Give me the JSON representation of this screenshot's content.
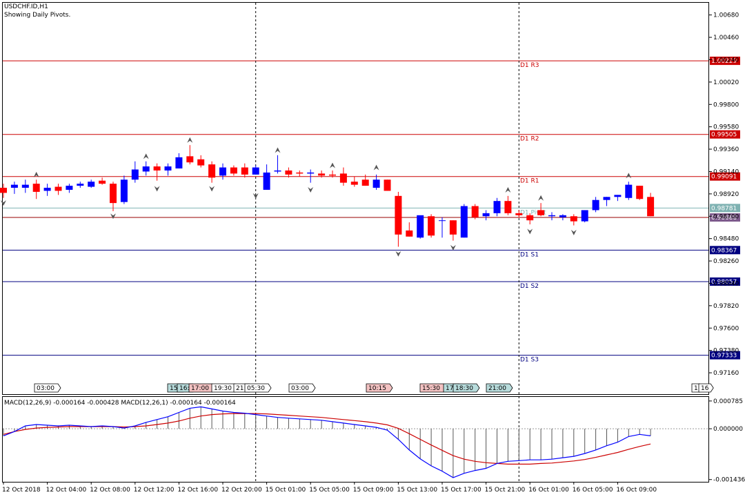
{
  "header": {
    "symbol": "USDCHF.ID,H1",
    "subtitle": "Showing Daily Pivots."
  },
  "colors": {
    "bull": "#0000ff",
    "bear": "#ff0000",
    "resistance": "#cc0000",
    "support": "#000080",
    "pivot": "#7fb2b2",
    "macd_main": "#0000ff",
    "macd_signal": "#cc0000",
    "axis": "#000000"
  },
  "chart_data": [
    {
      "type": "candlestick",
      "title": "USDCHF.ID,H1",
      "subtitle": "Showing Daily Pivots.",
      "ylim": [
        0.9695,
        1.008
      ],
      "y_ticks": [
        "1.00680",
        "1.00460",
        "1.00240",
        "1.00020",
        "0.99800",
        "0.99580",
        "0.99360",
        "0.99140",
        "0.98920",
        "0.98700",
        "0.98480",
        "0.98260",
        "0.98040",
        "0.97820",
        "0.97600",
        "0.97380",
        "0.97160"
      ],
      "pivot_levels": [
        {
          "name": "D1 R3",
          "value": 1.00229,
          "label": "1.00229",
          "kind": "resistance"
        },
        {
          "name": "D1 R2",
          "value": 0.99505,
          "label": "0.99505",
          "kind": "resistance"
        },
        {
          "name": "D1 R1",
          "value": 0.99091,
          "label": "0.99091",
          "kind": "resistance"
        },
        {
          "name": "D1 Pivot",
          "value": 0.98781,
          "label": "0.98781",
          "kind": "pivot"
        },
        {
          "name": "D1 S1",
          "value": 0.98367,
          "label": "0.98367",
          "kind": "support"
        },
        {
          "name": "D1 S2",
          "value": 0.98057,
          "label": "0.98057",
          "kind": "support"
        },
        {
          "name": "D1 S3",
          "value": 0.97333,
          "label": "0.97333",
          "kind": "support"
        }
      ],
      "current_price": {
        "value": 0.98688,
        "label": "0.98688"
      },
      "candles": [
        {
          "o": 0.9898,
          "h": 0.9902,
          "l": 0.9888,
          "c": 0.9893
        },
        {
          "o": 0.9898,
          "h": 0.9904,
          "l": 0.9892,
          "c": 0.9901
        },
        {
          "o": 0.9898,
          "h": 0.9906,
          "l": 0.9893,
          "c": 0.9901
        },
        {
          "o": 0.9902,
          "h": 0.9906,
          "l": 0.9887,
          "c": 0.9894
        },
        {
          "o": 0.9895,
          "h": 0.9902,
          "l": 0.989,
          "c": 0.9898
        },
        {
          "o": 0.9899,
          "h": 0.9902,
          "l": 0.9891,
          "c": 0.9895
        },
        {
          "o": 0.9896,
          "h": 0.9902,
          "l": 0.9893,
          "c": 0.99
        },
        {
          "o": 0.99,
          "h": 0.9904,
          "l": 0.9898,
          "c": 0.9902
        },
        {
          "o": 0.9899,
          "h": 0.9906,
          "l": 0.9898,
          "c": 0.9904
        },
        {
          "o": 0.9905,
          "h": 0.9908,
          "l": 0.9901,
          "c": 0.9902
        },
        {
          "o": 0.9902,
          "h": 0.9904,
          "l": 0.9875,
          "c": 0.9883
        },
        {
          "o": 0.9884,
          "h": 0.991,
          "l": 0.9882,
          "c": 0.9906
        },
        {
          "o": 0.9906,
          "h": 0.9924,
          "l": 0.9903,
          "c": 0.9916
        },
        {
          "o": 0.9914,
          "h": 0.9924,
          "l": 0.991,
          "c": 0.9919
        },
        {
          "o": 0.9919,
          "h": 0.9922,
          "l": 0.9905,
          "c": 0.9915
        },
        {
          "o": 0.9915,
          "h": 0.9922,
          "l": 0.991,
          "c": 0.9919
        },
        {
          "o": 0.9917,
          "h": 0.9932,
          "l": 0.9917,
          "c": 0.9928
        },
        {
          "o": 0.9929,
          "h": 0.994,
          "l": 0.9921,
          "c": 0.9923
        },
        {
          "o": 0.9926,
          "h": 0.993,
          "l": 0.9918,
          "c": 0.992
        },
        {
          "o": 0.9921,
          "h": 0.9924,
          "l": 0.9903,
          "c": 0.9908
        },
        {
          "o": 0.991,
          "h": 0.9922,
          "l": 0.9906,
          "c": 0.9918
        },
        {
          "o": 0.9918,
          "h": 0.992,
          "l": 0.991,
          "c": 0.9912
        },
        {
          "o": 0.9918,
          "h": 0.9922,
          "l": 0.9908,
          "c": 0.9911
        },
        {
          "o": 0.9911,
          "h": 0.992,
          "l": 0.9911,
          "c": 0.9918
        },
        {
          "o": 0.9896,
          "h": 0.9921,
          "l": 0.9896,
          "c": 0.9913
        },
        {
          "o": 0.9914,
          "h": 0.993,
          "l": 0.9912,
          "c": 0.9915
        },
        {
          "o": 0.9915,
          "h": 0.9918,
          "l": 0.9908,
          "c": 0.9911
        },
        {
          "o": 0.9913,
          "h": 0.9915,
          "l": 0.9909,
          "c": 0.9912
        },
        {
          "o": 0.9912,
          "h": 0.9916,
          "l": 0.9903,
          "c": 0.9913
        },
        {
          "o": 0.9912,
          "h": 0.9915,
          "l": 0.9908,
          "c": 0.991
        },
        {
          "o": 0.9911,
          "h": 0.9915,
          "l": 0.9908,
          "c": 0.991
        },
        {
          "o": 0.9912,
          "h": 0.9918,
          "l": 0.99,
          "c": 0.9903
        },
        {
          "o": 0.9904,
          "h": 0.9909,
          "l": 0.9899,
          "c": 0.9901
        },
        {
          "o": 0.9906,
          "h": 0.9911,
          "l": 0.99,
          "c": 0.99
        },
        {
          "o": 0.9898,
          "h": 0.9911,
          "l": 0.9896,
          "c": 0.9906
        },
        {
          "o": 0.9906,
          "h": 0.9906,
          "l": 0.9895,
          "c": 0.9895
        },
        {
          "o": 0.989,
          "h": 0.9894,
          "l": 0.984,
          "c": 0.9852
        },
        {
          "o": 0.9856,
          "h": 0.9864,
          "l": 0.985,
          "c": 0.985
        },
        {
          "o": 0.9849,
          "h": 0.9869,
          "l": 0.9848,
          "c": 0.9871
        },
        {
          "o": 0.987,
          "h": 0.9872,
          "l": 0.9849,
          "c": 0.9851
        },
        {
          "o": 0.9866,
          "h": 0.9869,
          "l": 0.9849,
          "c": 0.9866
        },
        {
          "o": 0.9866,
          "h": 0.9866,
          "l": 0.9846,
          "c": 0.9852
        },
        {
          "o": 0.9849,
          "h": 0.9882,
          "l": 0.9849,
          "c": 0.988
        },
        {
          "o": 0.988,
          "h": 0.9882,
          "l": 0.9867,
          "c": 0.9869
        },
        {
          "o": 0.987,
          "h": 0.9876,
          "l": 0.9866,
          "c": 0.9873
        },
        {
          "o": 0.9873,
          "h": 0.9888,
          "l": 0.987,
          "c": 0.9885
        },
        {
          "o": 0.9885,
          "h": 0.989,
          "l": 0.9871,
          "c": 0.9873
        },
        {
          "o": 0.9873,
          "h": 0.9876,
          "l": 0.9869,
          "c": 0.9871
        },
        {
          "o": 0.9871,
          "h": 0.9873,
          "l": 0.9862,
          "c": 0.9866
        },
        {
          "o": 0.9876,
          "h": 0.9883,
          "l": 0.987,
          "c": 0.9871
        },
        {
          "o": 0.987,
          "h": 0.9874,
          "l": 0.9866,
          "c": 0.9871
        },
        {
          "o": 0.9869,
          "h": 0.9872,
          "l": 0.9866,
          "c": 0.9871
        },
        {
          "o": 0.987,
          "h": 0.9872,
          "l": 0.9861,
          "c": 0.9865
        },
        {
          "o": 0.9865,
          "h": 0.9876,
          "l": 0.9864,
          "c": 0.9876
        },
        {
          "o": 0.9876,
          "h": 0.9889,
          "l": 0.9874,
          "c": 0.9886
        },
        {
          "o": 0.9886,
          "h": 0.9889,
          "l": 0.988,
          "c": 0.9889
        },
        {
          "o": 0.9889,
          "h": 0.9891,
          "l": 0.9885,
          "c": 0.9891
        },
        {
          "o": 0.9888,
          "h": 0.9904,
          "l": 0.9886,
          "c": 0.9901
        },
        {
          "o": 0.99,
          "h": 0.99,
          "l": 0.9886,
          "c": 0.9887
        },
        {
          "o": 0.9889,
          "h": 0.9893,
          "l": 0.987,
          "c": 0.987
        }
      ],
      "fractals": [
        {
          "i": 0,
          "dir": "down",
          "value": 0.9883
        },
        {
          "i": 3,
          "dir": "up",
          "value": 0.9911
        },
        {
          "i": 10,
          "dir": "down",
          "value": 0.987
        },
        {
          "i": 13,
          "dir": "up",
          "value": 0.9929
        },
        {
          "i": 14,
          "dir": "down",
          "value": 0.9897
        },
        {
          "i": 17,
          "dir": "up",
          "value": 0.9945
        },
        {
          "i": 19,
          "dir": "down",
          "value": 0.9897
        },
        {
          "i": 23,
          "dir": "down",
          "value": 0.989
        },
        {
          "i": 25,
          "dir": "up",
          "value": 0.9935
        },
        {
          "i": 28,
          "dir": "down",
          "value": 0.9896
        },
        {
          "i": 30,
          "dir": "up",
          "value": 0.992
        },
        {
          "i": 34,
          "dir": "up",
          "value": 0.9918
        },
        {
          "i": 36,
          "dir": "down",
          "value": 0.9833
        },
        {
          "i": 41,
          "dir": "down",
          "value": 0.9839
        },
        {
          "i": 46,
          "dir": "up",
          "value": 0.9896
        },
        {
          "i": 48,
          "dir": "down",
          "value": 0.9855
        },
        {
          "i": 49,
          "dir": "up",
          "value": 0.9888
        },
        {
          "i": 52,
          "dir": "down",
          "value": 0.9854
        },
        {
          "i": 57,
          "dir": "up",
          "value": 0.991
        }
      ],
      "event_markers": [
        {
          "label": "03:00",
          "type": "neutral"
        },
        {
          "label": "15:",
          "type": "info"
        },
        {
          "label": "16:",
          "type": "info"
        },
        {
          "label": "17:00",
          "type": "warn"
        },
        {
          "label": "19:30",
          "type": "neutral"
        },
        {
          "label": "21:",
          "type": "neutral"
        },
        {
          "label": "05:30",
          "type": "neutral"
        },
        {
          "label": "03:00",
          "type": "neutral"
        },
        {
          "label": "10:15",
          "type": "warn"
        },
        {
          "label": "15:30",
          "type": "warn"
        },
        {
          "label": "17:",
          "type": "info"
        },
        {
          "label": "18:30",
          "type": "info"
        },
        {
          "label": "21:00",
          "type": "info"
        },
        {
          "label": "1",
          "type": "neutral"
        },
        {
          "label": "16",
          "type": "neutral"
        }
      ],
      "day_separators": [
        23,
        47
      ]
    },
    {
      "type": "line",
      "title": "MACD(12,26,9) -0.000164 -0.000428 MACD(12,26,1) -0.000164 -0.000164",
      "ylim": [
        -0.0015,
        0.0009
      ],
      "y_ticks": [
        {
          "value": 0.000785,
          "label": "0.000785"
        },
        {
          "value": 0.0,
          "label": "0.000000"
        },
        {
          "value": -0.001436,
          "label": "-0.001436"
        }
      ],
      "series": [
        {
          "role": "main",
          "values": [
            -0.0002,
            -8e-05,
            8e-05,
            0.00012,
            0.0001,
            8e-05,
            0.0001,
            8e-05,
            6e-05,
            8e-05,
            6e-05,
            2e-05,
            8e-05,
            0.00018,
            0.00026,
            0.00034,
            0.00046,
            0.00058,
            0.00062,
            0.00056,
            0.0005,
            0.00046,
            0.00044,
            0.0004,
            0.00036,
            0.00032,
            0.0003,
            0.00028,
            0.00026,
            0.00024,
            0.0002,
            0.00016,
            0.00012,
            8e-05,
            4e-05,
            -4e-05,
            -0.0003,
            -0.0006,
            -0.00085,
            -0.00105,
            -0.0012,
            -0.00138,
            -0.00126,
            -0.00118,
            -0.00112,
            -0.00098,
            -0.00092,
            -0.0009,
            -0.00088,
            -0.00088,
            -0.00086,
            -0.00082,
            -0.00078,
            -0.0007,
            -0.0006,
            -0.00048,
            -0.00038,
            -0.00022,
            -0.00016,
            -0.0002
          ]
        },
        {
          "role": "signal",
          "values": [
            -0.00016,
            -8e-05,
            -2e-05,
            2e-05,
            4e-05,
            5e-05,
            6e-05,
            6e-05,
            6e-05,
            6e-05,
            6e-05,
            5e-05,
            6e-05,
            8e-05,
            0.00012,
            0.00016,
            0.00022,
            0.0003,
            0.00036,
            0.0004,
            0.00042,
            0.00043,
            0.00043,
            0.00043,
            0.00042,
            0.0004,
            0.00038,
            0.00036,
            0.00034,
            0.00032,
            0.00029,
            0.00026,
            0.00023,
            0.0002,
            0.00016,
            0.00011,
            1e-05,
            -0.00014,
            -0.0003,
            -0.00046,
            -0.00061,
            -0.00076,
            -0.00086,
            -0.00092,
            -0.00096,
            -0.00098,
            -0.001,
            -0.001,
            -0.001,
            -0.00098,
            -0.00097,
            -0.00094,
            -0.00091,
            -0.00087,
            -0.00081,
            -0.00074,
            -0.00067,
            -0.00058,
            -0.0005,
            -0.00043
          ]
        }
      ]
    }
  ],
  "x_axis": {
    "labels": [
      {
        "i": 0,
        "label": "12 Oct 2018"
      },
      {
        "i": 4,
        "label": "12 Oct 04:00"
      },
      {
        "i": 8,
        "label": "12 Oct 08:00"
      },
      {
        "i": 12,
        "label": "12 Oct 12:00"
      },
      {
        "i": 16,
        "label": "12 Oct 16:00"
      },
      {
        "i": 20,
        "label": "12 Oct 20:00"
      },
      {
        "i": 24,
        "label": "15 Oct 01:00"
      },
      {
        "i": 28,
        "label": "15 Oct 05:00"
      },
      {
        "i": 32,
        "label": "15 Oct 09:00"
      },
      {
        "i": 36,
        "label": "15 Oct 13:00"
      },
      {
        "i": 40,
        "label": "15 Oct 17:00"
      },
      {
        "i": 44,
        "label": "15 Oct 21:00"
      },
      {
        "i": 48,
        "label": "16 Oct 01:00"
      },
      {
        "i": 52,
        "label": "16 Oct 05:00"
      },
      {
        "i": 56,
        "label": "16 Oct 09:00"
      }
    ]
  }
}
